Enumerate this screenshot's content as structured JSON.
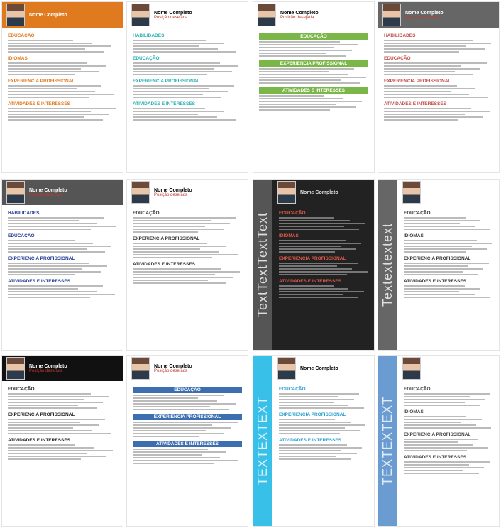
{
  "resumes": [
    {
      "name": "Nome Completo",
      "sections": [
        "EDUCAÇÃO",
        "IDIOMAS",
        "EXPERIENCIA PROFISSIONAL",
        "ATIVIDADES E INTERESSES"
      ]
    },
    {
      "name": "Nome Completo",
      "position": "Posição desejada",
      "sections": [
        "HABILIDADES",
        "EDUCAÇÃO",
        "EXPERIENCIA PROFISSIONAL",
        "ATIVIDADES E INTERESSES"
      ]
    },
    {
      "name": "Nome Completo",
      "position": "Posição desejada",
      "sections": [
        "EDUCAÇÃO",
        "EXPERIENCIA PROFISSIONAL",
        "ATIVIDADES E INTERESSES"
      ]
    },
    {
      "name": "Nome Completo",
      "position": "Posição desejada",
      "sections": [
        "HABILIDADES",
        "EDUCAÇÃO",
        "EXPERIENCIA PROFISSIONAL",
        "ATIVIDADES E INTERESSES"
      ]
    },
    {
      "name": "Nome Completo",
      "position": "Posição desejada",
      "sections": [
        "HABILIDADES",
        "EDUCAÇÃO",
        "EXPERIENCIA PROFISSIONAL",
        "ATIVIDADES E INTERESSES"
      ]
    },
    {
      "name": "Nome Completo",
      "position": "Posição desejada",
      "sections": [
        "EDUCAÇÃO",
        "EXPERIENCIA PROFISSIONAL",
        "ATIVIDADES E INTERESSES"
      ]
    },
    {
      "name": "Nome Completo",
      "side_text": "TextTextTextText",
      "sections": [
        "EDUCAÇÃO",
        "IDIOMAS",
        "EXPERIENCIA PROFISSIONAL",
        "ATIVIDADES E INTERESSES"
      ]
    },
    {
      "side_text": "Textextextext",
      "sections": [
        "EDUCAÇÃO",
        "IDIOMAS",
        "EXPERIENCIA PROFISSIONAL",
        "ATIVIDADES E INTERESSES"
      ]
    },
    {
      "name": "Nome Completo",
      "position": "Posição desejada",
      "sections": [
        "EDUCAÇÃO",
        "EXPERIENCIA PROFISSIONAL",
        "ATIVIDADES E INTERESSES"
      ]
    },
    {
      "name": "Nome Completo",
      "position": "Posição desejada",
      "sections": [
        "EDUCAÇÃO",
        "EXPERIENCIA PROFISSIONAL",
        "ATIVIDADES E INTERESSES"
      ]
    },
    {
      "name": "Nome Completo",
      "side_text": "TEXTEXTEXT",
      "sections": [
        "EDUCAÇÃO",
        "EXPERIENCIA PROFISSIONAL",
        "ATIVIDADES E INTERESSES"
      ]
    },
    {
      "side_text": "TEXTEXTEXT",
      "sections": [
        "EDUCAÇÃO",
        "IDIOMAS",
        "EXPERIENCIA PROFISSIONAL",
        "ATIVIDADES E INTERESSES"
      ]
    }
  ]
}
